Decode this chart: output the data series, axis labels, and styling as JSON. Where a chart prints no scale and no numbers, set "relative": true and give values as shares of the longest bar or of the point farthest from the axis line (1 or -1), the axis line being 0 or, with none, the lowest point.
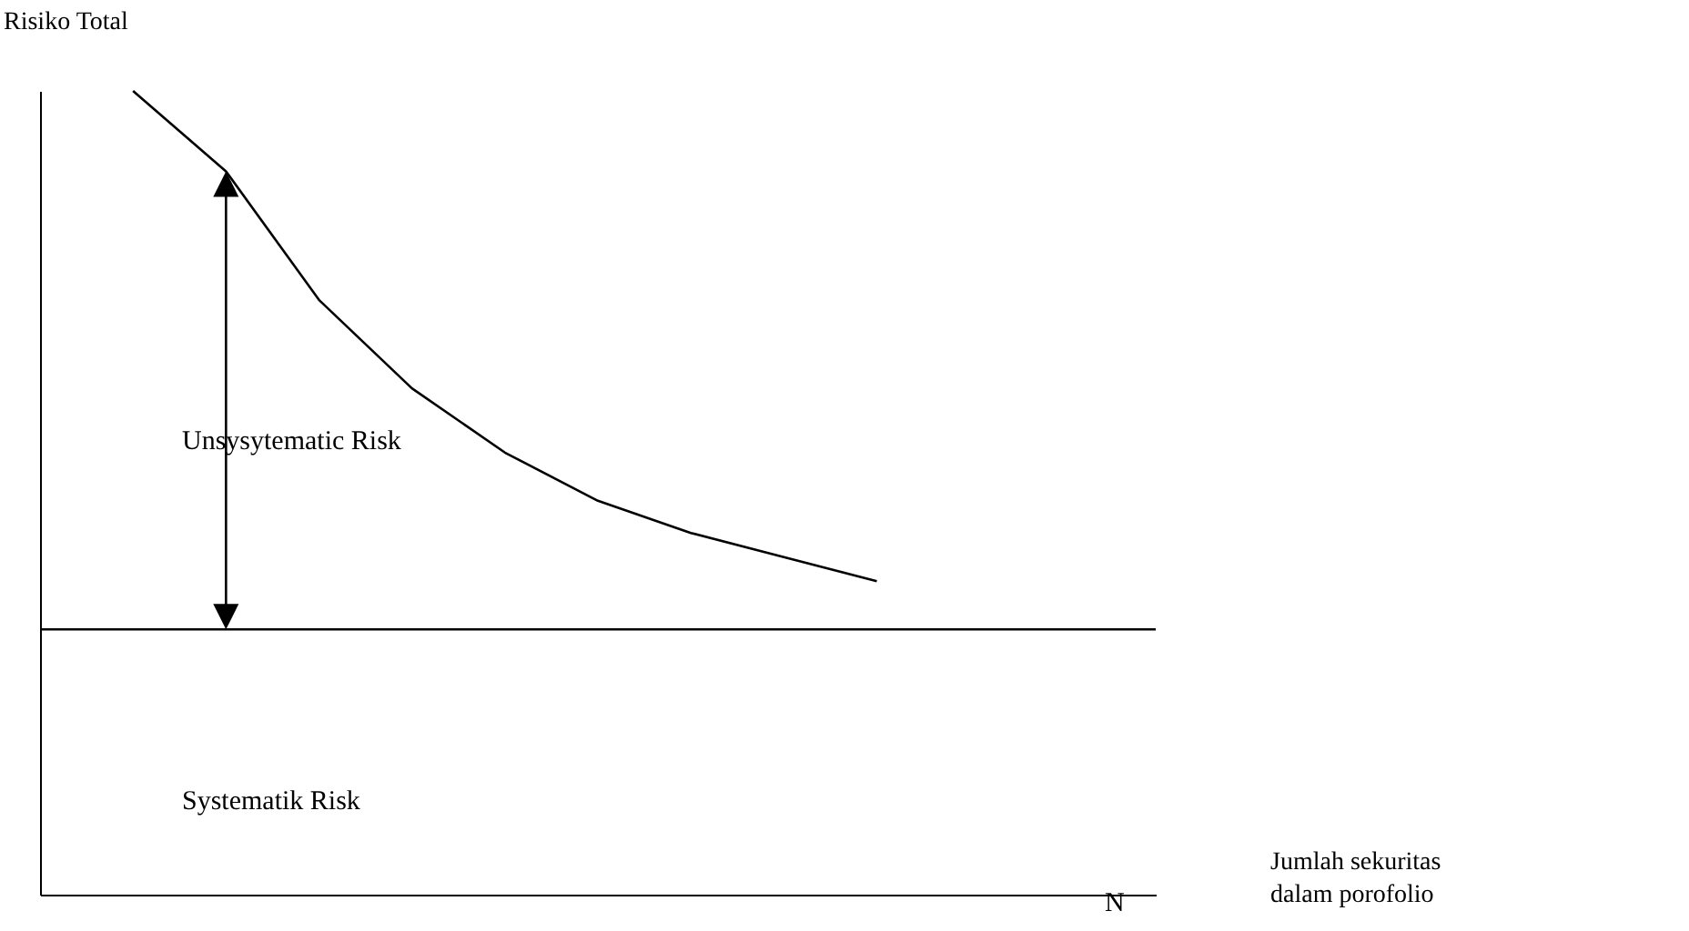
{
  "chart_data": {
    "type": "line",
    "relative": true,
    "ylabel": "Risiko Total",
    "xlabel": "Jumlah sekuritas dalam porofolio",
    "annotations": [
      "Unsysytematic Risk",
      "Systematik Risk",
      "N"
    ],
    "categories": [
      null,
      null,
      null,
      null,
      null,
      null,
      null,
      null,
      null,
      null,
      null,
      null,
      null
    ],
    "series": [
      {
        "color": "#000000",
        "values": [
          null,
          1.0,
          0.9,
          0.74,
          0.63,
          0.55,
          0.49,
          0.45,
          0.42,
          0.39,
          null,
          null,
          null
        ]
      },
      {
        "color": "#000000",
        "values": [
          0.33,
          0.33,
          0.33,
          0.33,
          0.33,
          0.33,
          0.33,
          0.33,
          0.33,
          0.33,
          0.33,
          0.33,
          0.33
        ]
      }
    ]
  }
}
